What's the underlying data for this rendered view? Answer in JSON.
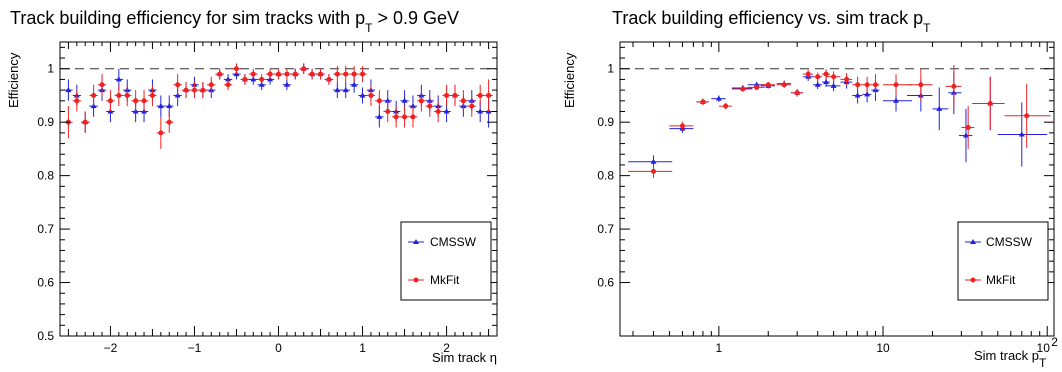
{
  "chart_data": [
    {
      "type": "scatter",
      "title_main": "Track building efficiency for sim tracks with p",
      "title_sub": "T",
      "title_tail": " > 0.9 GeV",
      "xlabel": "Sim track η",
      "ylabel": "Efficiency",
      "xlim": [
        -2.6,
        2.6
      ],
      "ylim": [
        0.5,
        1.05
      ],
      "x_ticks": [
        -2,
        -1,
        0,
        1,
        2
      ],
      "y_ticks": [
        0.5,
        0.6,
        0.7,
        0.8,
        0.9,
        1
      ],
      "reference_line": 1,
      "legend_position": "bottom-right",
      "series": [
        {
          "name": "CMSSW",
          "color": "#2222dd",
          "x": [
            -2.5,
            -2.4,
            -2.3,
            -2.2,
            -2.1,
            -2.0,
            -1.9,
            -1.8,
            -1.7,
            -1.6,
            -1.5,
            -1.4,
            -1.3,
            -1.2,
            -1.1,
            -1.0,
            -0.9,
            -0.8,
            -0.7,
            -0.6,
            -0.5,
            -0.4,
            -0.3,
            -0.2,
            -0.1,
            0.0,
            0.1,
            0.2,
            0.3,
            0.4,
            0.5,
            0.6,
            0.7,
            0.8,
            0.9,
            1.0,
            1.1,
            1.2,
            1.3,
            1.4,
            1.5,
            1.6,
            1.7,
            1.8,
            1.9,
            2.0,
            2.1,
            2.2,
            2.3,
            2.4,
            2.5
          ],
          "y": [
            0.96,
            0.95,
            0.9,
            0.93,
            0.96,
            0.92,
            0.98,
            0.96,
            0.92,
            0.92,
            0.96,
            0.93,
            0.93,
            0.95,
            0.96,
            0.97,
            0.96,
            0.96,
            0.99,
            0.98,
            0.99,
            0.98,
            0.98,
            0.97,
            0.98,
            0.99,
            0.97,
            0.99,
            1.0,
            0.99,
            0.99,
            0.98,
            0.96,
            0.96,
            0.97,
            0.95,
            0.96,
            0.91,
            0.94,
            0.92,
            0.94,
            0.93,
            0.95,
            0.94,
            0.93,
            0.92,
            0.95,
            0.93,
            0.94,
            0.92,
            0.92
          ],
          "err": [
            0.02,
            0.02,
            0.02,
            0.02,
            0.02,
            0.02,
            0.02,
            0.02,
            0.02,
            0.02,
            0.02,
            0.02,
            0.02,
            0.02,
            0.015,
            0.015,
            0.015,
            0.015,
            0.01,
            0.01,
            0.01,
            0.01,
            0.01,
            0.01,
            0.01,
            0.01,
            0.01,
            0.01,
            0.01,
            0.01,
            0.01,
            0.01,
            0.015,
            0.015,
            0.015,
            0.015,
            0.02,
            0.02,
            0.02,
            0.02,
            0.02,
            0.02,
            0.02,
            0.02,
            0.02,
            0.02,
            0.02,
            0.02,
            0.02,
            0.02,
            0.03
          ]
        },
        {
          "name": "MkFit",
          "color": "#ee2222",
          "x": [
            -2.5,
            -2.4,
            -2.3,
            -2.2,
            -2.1,
            -2.0,
            -1.9,
            -1.8,
            -1.7,
            -1.6,
            -1.5,
            -1.4,
            -1.3,
            -1.2,
            -1.1,
            -1.0,
            -0.9,
            -0.8,
            -0.7,
            -0.6,
            -0.5,
            -0.4,
            -0.3,
            -0.2,
            -0.1,
            0.0,
            0.1,
            0.2,
            0.3,
            0.4,
            0.5,
            0.6,
            0.7,
            0.8,
            0.9,
            1.0,
            1.1,
            1.2,
            1.3,
            1.4,
            1.5,
            1.6,
            1.7,
            1.8,
            1.9,
            2.0,
            2.1,
            2.2,
            2.3,
            2.4,
            2.5
          ],
          "y": [
            0.9,
            0.94,
            0.9,
            0.95,
            0.97,
            0.94,
            0.95,
            0.95,
            0.94,
            0.94,
            0.95,
            0.88,
            0.9,
            0.97,
            0.96,
            0.96,
            0.96,
            0.97,
            0.99,
            0.97,
            1.0,
            0.98,
            0.99,
            0.98,
            0.99,
            0.99,
            0.99,
            0.99,
            1.0,
            0.99,
            0.99,
            0.98,
            0.99,
            0.99,
            0.99,
            0.99,
            0.95,
            0.94,
            0.92,
            0.91,
            0.91,
            0.91,
            0.94,
            0.93,
            0.92,
            0.95,
            0.95,
            0.94,
            0.93,
            0.95,
            0.95
          ],
          "err": [
            0.03,
            0.02,
            0.02,
            0.02,
            0.02,
            0.02,
            0.02,
            0.02,
            0.02,
            0.02,
            0.02,
            0.03,
            0.02,
            0.02,
            0.015,
            0.015,
            0.015,
            0.015,
            0.01,
            0.01,
            0.01,
            0.01,
            0.01,
            0.01,
            0.01,
            0.01,
            0.01,
            0.01,
            0.01,
            0.01,
            0.01,
            0.01,
            0.015,
            0.015,
            0.015,
            0.015,
            0.02,
            0.02,
            0.02,
            0.02,
            0.02,
            0.02,
            0.02,
            0.02,
            0.02,
            0.02,
            0.02,
            0.02,
            0.02,
            0.02,
            0.03
          ]
        }
      ]
    },
    {
      "type": "scatter",
      "title_main": "Track building efficiency vs. sim track p",
      "title_sub": "T",
      "title_tail": "",
      "xlabel": "Sim track p",
      "xlabel_sub": "T",
      "x_scale": "log",
      "xlim": [
        0.25,
        110
      ],
      "ylim": [
        0.5,
        1.05
      ],
      "x_tick_labels": [
        "1",
        "10",
        "10"
      ],
      "x_tick_sup": "2",
      "ylabel": "Efficiency",
      "y_ticks": [
        0.6,
        0.7,
        0.8,
        0.9,
        1
      ],
      "reference_line": 1,
      "legend_position": "bottom-right",
      "series": [
        {
          "name": "CMSSW",
          "color": "#2222dd",
          "x": [
            0.4,
            0.6,
            0.8,
            1.0,
            1.4,
            1.7,
            2.0,
            2.5,
            3.0,
            3.5,
            4.0,
            4.5,
            5.0,
            6.0,
            7.0,
            8.0,
            9.0,
            12,
            17,
            22,
            27,
            32,
            45,
            70
          ],
          "xerr_lo": [
            0.12,
            0.1,
            0.07,
            0.1,
            0.2,
            0.2,
            0.2,
            0.25,
            0.25,
            0.25,
            0.25,
            0.25,
            0.5,
            0.5,
            0.5,
            0.5,
            0.5,
            2,
            3,
            2,
            2,
            3,
            10,
            20
          ],
          "xerr_hi": [
            0.12,
            0.1,
            0.07,
            0.1,
            0.2,
            0.2,
            0.2,
            0.25,
            0.25,
            0.25,
            0.25,
            0.25,
            0.5,
            0.5,
            0.5,
            0.5,
            0.5,
            3,
            3,
            3,
            3,
            3,
            10,
            30
          ],
          "y": [
            0.826,
            0.888,
            0.938,
            0.944,
            0.964,
            0.97,
            0.968,
            0.972,
            0.955,
            0.985,
            0.97,
            0.975,
            0.968,
            0.975,
            0.95,
            0.952,
            0.96,
            0.94,
            0.95,
            0.925,
            0.955,
            0.875,
            0.935,
            0.877
          ],
          "err": [
            0.012,
            0.008,
            0.006,
            0.006,
            0.005,
            0.005,
            0.005,
            0.006,
            0.007,
            0.008,
            0.008,
            0.009,
            0.01,
            0.012,
            0.015,
            0.015,
            0.02,
            0.02,
            0.03,
            0.04,
            0.04,
            0.05,
            0.05,
            0.06
          ]
        },
        {
          "name": "MkFit",
          "color": "#ee2222",
          "x": [
            0.4,
            0.6,
            0.8,
            1.1,
            1.4,
            1.7,
            2.0,
            2.5,
            3.0,
            3.5,
            4.0,
            4.5,
            5.0,
            6.0,
            7.0,
            8.0,
            9.0,
            12,
            17,
            27,
            33,
            45,
            75
          ],
          "xerr_lo": [
            0.12,
            0.1,
            0.07,
            0.1,
            0.2,
            0.2,
            0.2,
            0.25,
            0.25,
            0.25,
            0.25,
            0.25,
            0.5,
            0.5,
            0.5,
            0.5,
            0.5,
            2,
            3,
            3,
            3,
            10,
            20
          ],
          "xerr_hi": [
            0.12,
            0.1,
            0.07,
            0.1,
            0.2,
            0.2,
            0.2,
            0.25,
            0.25,
            0.25,
            0.25,
            0.25,
            0.5,
            0.5,
            0.5,
            0.5,
            0.5,
            3,
            3,
            3,
            3,
            10,
            30
          ],
          "y": [
            0.808,
            0.893,
            0.938,
            0.93,
            0.962,
            0.965,
            0.97,
            0.97,
            0.955,
            0.99,
            0.985,
            0.99,
            0.985,
            0.98,
            0.97,
            0.97,
            0.97,
            0.97,
            0.97,
            0.967,
            0.89,
            0.935,
            0.912
          ],
          "err": [
            0.012,
            0.008,
            0.006,
            0.006,
            0.005,
            0.005,
            0.005,
            0.006,
            0.007,
            0.008,
            0.008,
            0.009,
            0.01,
            0.012,
            0.015,
            0.015,
            0.02,
            0.02,
            0.03,
            0.04,
            0.04,
            0.05,
            0.06
          ]
        }
      ]
    }
  ],
  "panels": [
    {
      "y_tick_labels": [
        "0.5",
        "0.6",
        "0.7",
        "0.8",
        "0.9",
        "1"
      ],
      "x_tick_labels": [
        "−2",
        "−1",
        "0",
        "1",
        "2"
      ]
    },
    {
      "y_tick_labels": [
        "0.6",
        "0.7",
        "0.8",
        "0.9",
        "1"
      ]
    }
  ]
}
